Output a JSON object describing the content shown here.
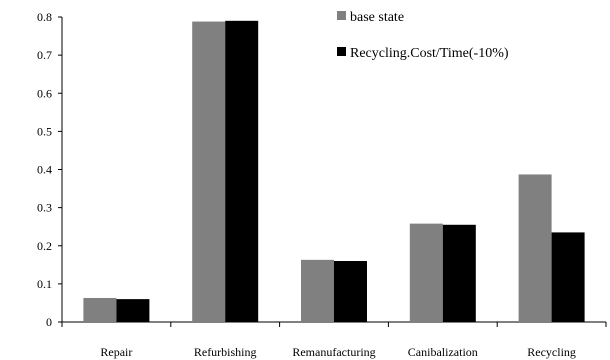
{
  "chart_data": {
    "type": "bar",
    "title": "",
    "xlabel": "",
    "ylabel": "",
    "ylim": [
      0,
      0.8
    ],
    "yticks": [
      "0",
      "0.1",
      "0.2",
      "0.3",
      "0.4",
      "0.5",
      "0.6",
      "0.7",
      "0.8"
    ],
    "categories": [
      "Repair",
      "Refurbishing",
      "Remanufacturing",
      "Canibalization",
      "Recycling"
    ],
    "series": [
      {
        "name": "base state",
        "color": "#808080",
        "values": [
          0.063,
          0.788,
          0.163,
          0.258,
          0.387
        ]
      },
      {
        "name": "Recycling.Cost/Time(-10%)",
        "color": "#000000",
        "values": [
          0.06,
          0.79,
          0.16,
          0.255,
          0.235
        ]
      }
    ],
    "grid": false,
    "legend_position": "top-right"
  }
}
